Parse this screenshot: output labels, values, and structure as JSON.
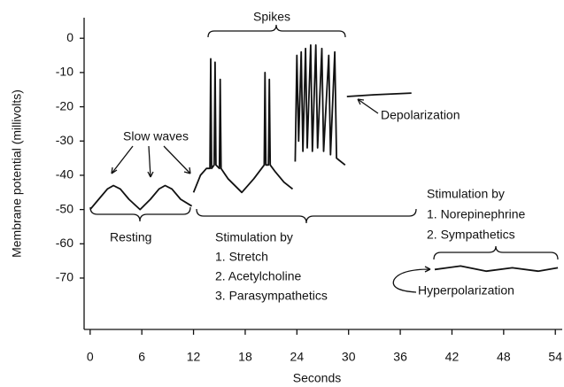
{
  "chart_data": {
    "type": "line",
    "xlabel": "Seconds",
    "ylabel": "Membrane potential (millivolts)",
    "xlim": [
      -0.7,
      54.8
    ],
    "ylim": [
      -85,
      6
    ],
    "xticks": [
      0,
      6,
      12,
      18,
      24,
      30,
      36,
      42,
      48,
      54
    ],
    "yticks": [
      0,
      -10,
      -20,
      -30,
      -40,
      -50,
      -60,
      -70
    ],
    "color": "#111111",
    "series": [
      {
        "x": [
          0,
          1,
          2,
          2.7,
          3.5,
          4.5,
          5.8,
          7,
          8,
          8.7,
          9.5,
          10.5,
          11.8
        ],
        "values": [
          -50,
          -47,
          -44,
          -43,
          -44,
          -47,
          -50,
          -47,
          -44,
          -43,
          -44,
          -47,
          -49
        ]
      },
      {
        "x": [
          12,
          12.8,
          13.5,
          13.9,
          14.0,
          14.1,
          14.4,
          14.5,
          14.6,
          15.0,
          15.1,
          15.2,
          16,
          17.6,
          19,
          20.2,
          20.3,
          20.4,
          20.7,
          20.8,
          20.9,
          21.5,
          22.5,
          23.5
        ],
        "values": [
          -45,
          -40,
          -38,
          -38,
          -6,
          -38,
          -37,
          -7,
          -37,
          -38,
          -12,
          -38,
          -41,
          -45,
          -41,
          -37,
          -10,
          -37,
          -37,
          -12,
          -37,
          -39,
          -42,
          -44
        ]
      },
      {
        "x": [
          23.8,
          24.0,
          24.2,
          24.5,
          24.7,
          25.0,
          25.2,
          25.6,
          25.8,
          26.2,
          26.4,
          26.9,
          27.1,
          27.7,
          27.9,
          28.4,
          28.6,
          29.6
        ],
        "values": [
          -36,
          -5,
          -30,
          -4,
          -33,
          -3,
          -32,
          -2,
          -33,
          -2,
          -32,
          -3,
          -33,
          -5,
          -34,
          -4,
          -35,
          -37
        ]
      },
      {
        "x": [
          29.8,
          33,
          37.3
        ],
        "values": [
          -17,
          -16.5,
          -16
        ]
      },
      {
        "x": [
          40,
          43,
          46,
          49,
          52,
          54.3
        ],
        "values": [
          -67.5,
          -66.5,
          -68,
          -67,
          -68,
          -67
        ]
      }
    ],
    "annotations": [
      "Spikes",
      "Slow waves",
      "Depolarization",
      "Resting",
      "Stimulation by",
      "1. Stretch",
      "2. Acetylcholine",
      "3. Parasympathetics",
      "Stimulation by",
      "1. Norepinephrine",
      "2. Sympathetics",
      "Hyperpolarization"
    ]
  }
}
